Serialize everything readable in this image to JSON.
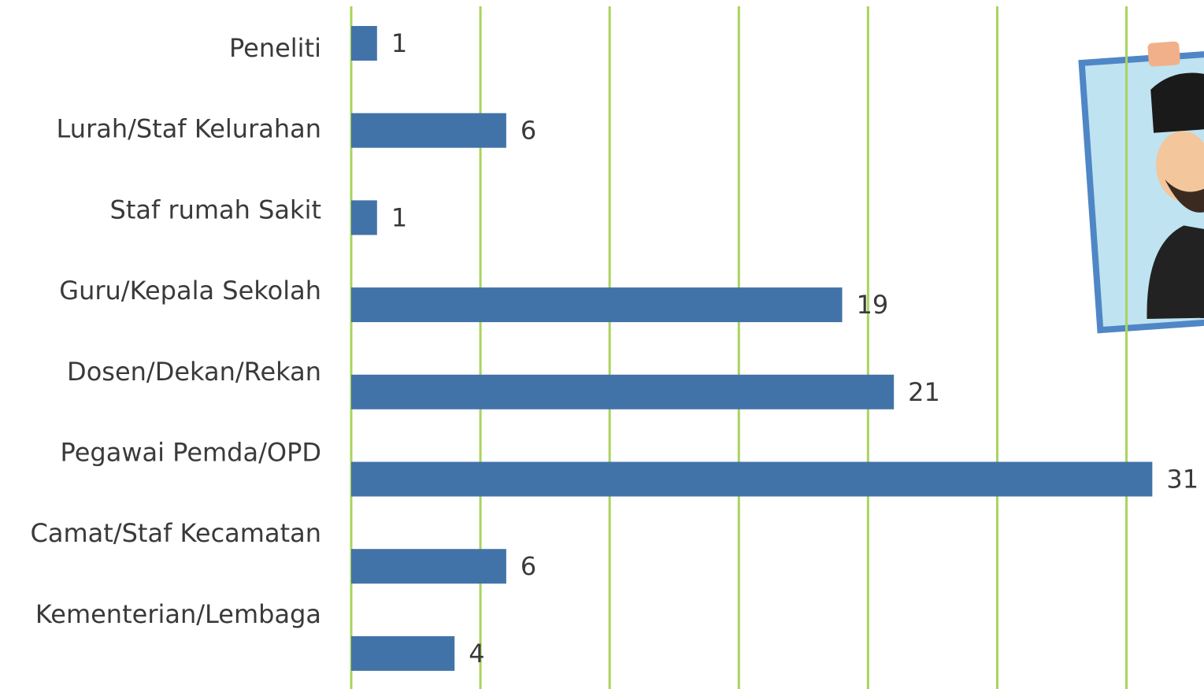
{
  "chart_data": {
    "type": "bar",
    "orientation": "horizontal",
    "categories": [
      "Peneliti",
      "Lurah/Staf Kelurahan",
      "Staf rumah Sakit",
      "Guru/Kepala Sekolah",
      "Dosen/Dekan/Rekan",
      "Pegawai Pemda/OPD",
      "Camat/Staf Kecamatan",
      "Kementerian/Lembaga"
    ],
    "values": [
      1,
      6,
      1,
      19,
      21,
      31,
      6,
      4
    ],
    "color": "#4273a8",
    "xlim": [
      0,
      33
    ],
    "xticks": [
      0,
      5,
      10,
      15,
      20,
      25,
      30
    ],
    "grid": true,
    "grid_color": "#a9d45c"
  }
}
